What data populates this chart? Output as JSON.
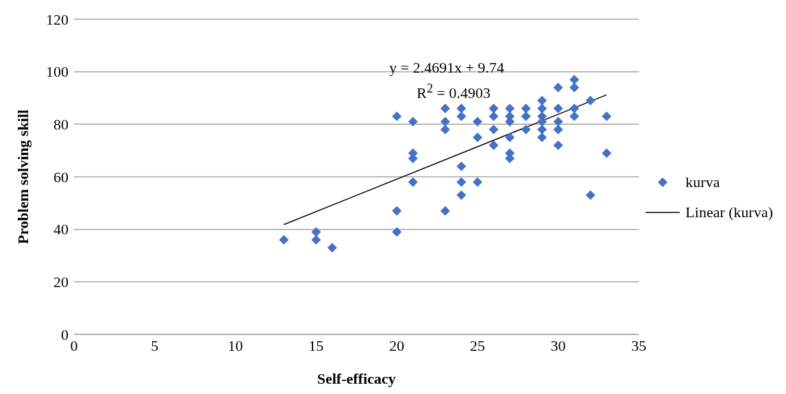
{
  "chart_data": {
    "type": "scatter",
    "xlabel": "Self-efficacy",
    "ylabel": "Problem solving skill",
    "xlim": [
      0,
      35
    ],
    "xticks": [
      0,
      5,
      10,
      15,
      20,
      25,
      30,
      35
    ],
    "ylim": [
      0,
      120
    ],
    "yticks": [
      0,
      20,
      40,
      60,
      80,
      100,
      120
    ],
    "grid": "y",
    "legend": "right",
    "marker": "diamond",
    "annotations": [
      "y = 2.4691x + 9.74",
      "R$^{2}$ = 0.4903"
    ],
    "series": [
      {
        "name": "kurva",
        "color": "#4472c4",
        "x": [
          13,
          15,
          15,
          16,
          20,
          20,
          20,
          21,
          21,
          21,
          21,
          23,
          23,
          23,
          23,
          24,
          24,
          24,
          24,
          24,
          25,
          25,
          25,
          26,
          26,
          26,
          26,
          27,
          27,
          27,
          27,
          27,
          27,
          28,
          28,
          28,
          29,
          29,
          29,
          29,
          29,
          29,
          30,
          30,
          30,
          30,
          30,
          31,
          31,
          31,
          31,
          32,
          32,
          33,
          33
        ],
        "values": [
          36,
          39,
          36,
          33,
          83,
          47,
          39,
          81,
          69,
          67,
          58,
          86,
          81,
          78,
          47,
          86,
          83,
          64,
          58,
          53,
          81,
          75,
          58,
          86,
          83,
          78,
          72,
          86,
          83,
          81,
          75,
          69,
          67,
          86,
          83,
          78,
          89,
          86,
          83,
          81,
          78,
          75,
          94,
          86,
          81,
          78,
          72,
          97,
          94,
          86,
          83,
          89,
          53,
          83,
          69
        ]
      },
      {
        "name": "Linear (kurva)",
        "type": "line",
        "color": "#000000",
        "marker": "none",
        "line_style": "solid",
        "x": [
          13,
          33
        ],
        "values": [
          41.8,
          91.2
        ]
      }
    ]
  }
}
